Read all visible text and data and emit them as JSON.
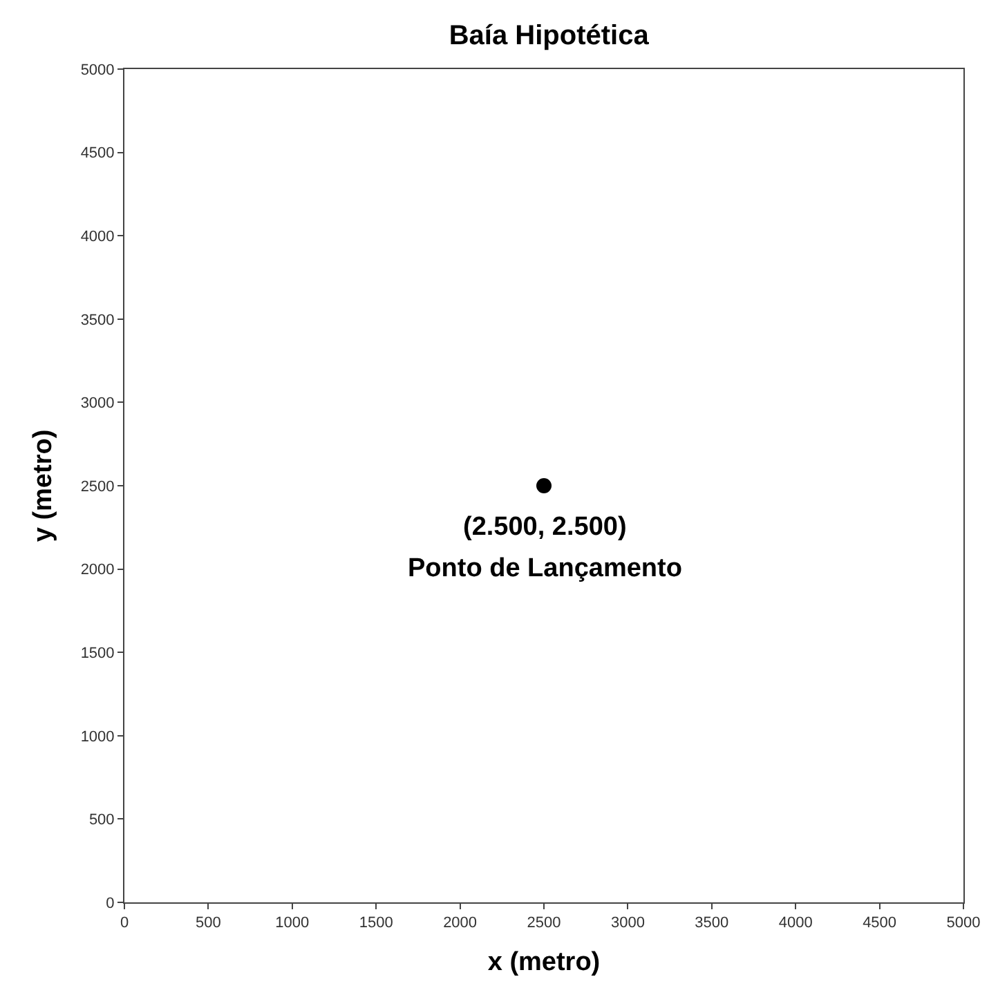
{
  "chart_data": {
    "type": "scatter",
    "title": "Baía Hipotética",
    "xlabel": "x (metro)",
    "ylabel": "y (metro)",
    "x": [
      2500
    ],
    "series": [
      {
        "color": "#000000",
        "values": [
          2500
        ]
      }
    ],
    "marker": "circle",
    "xlim": [
      0,
      5000
    ],
    "ylim": [
      0,
      5000
    ],
    "xticks": [
      0,
      500,
      1000,
      1500,
      2000,
      2500,
      3000,
      3500,
      4000,
      4500,
      5000
    ],
    "yticks": [
      0,
      500,
      1000,
      1500,
      2000,
      2500,
      3000,
      3500,
      4000,
      4500,
      5000
    ],
    "annotations": [
      {
        "text": "(2.500, 2.500)",
        "x": 2500,
        "y": 2500
      },
      {
        "text": "Ponto de Lançamento",
        "x": 2500,
        "y": 2500
      }
    ]
  }
}
